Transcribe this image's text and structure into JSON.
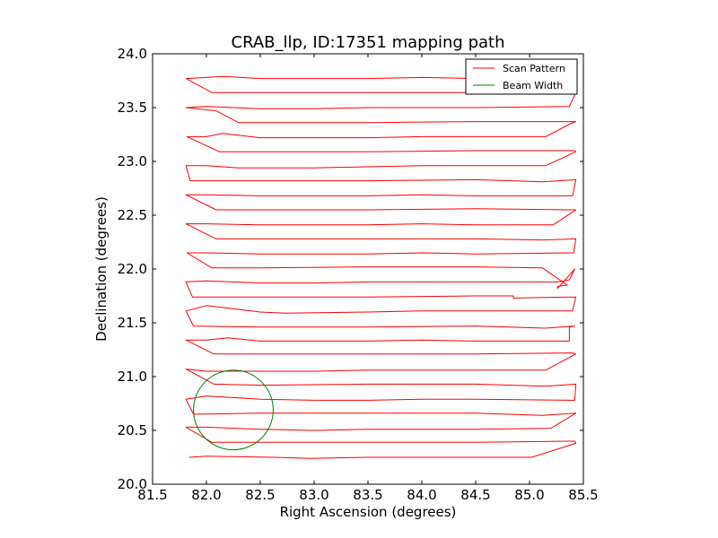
{
  "chart_data": {
    "type": "line",
    "title": "CRAB_llp, ID:17351 mapping path",
    "xlabel": "Right Ascension (degrees)",
    "ylabel": "Declination (degrees)",
    "xlim": [
      81.5,
      85.5
    ],
    "ylim": [
      20.0,
      24.0
    ],
    "xticks": [
      "81.5",
      "82.0",
      "82.5",
      "83.0",
      "83.5",
      "84.0",
      "84.5",
      "85.0",
      "85.5"
    ],
    "yticks": [
      "20.0",
      "20.5",
      "21.0",
      "21.5",
      "22.0",
      "22.5",
      "23.0",
      "23.5",
      "24.0"
    ],
    "grid": false,
    "legend_position": "top-right",
    "series": [
      {
        "name": "Scan Pattern",
        "color": "#ff0000",
        "points": [
          [
            81.84,
            20.25
          ],
          [
            82.0,
            20.26
          ],
          [
            82.63,
            20.25
          ],
          [
            82.97,
            20.24
          ],
          [
            83.5,
            20.25
          ],
          [
            84.0,
            20.25
          ],
          [
            84.5,
            20.25
          ],
          [
            85.02,
            20.25
          ],
          [
            85.43,
            20.38
          ],
          [
            85.42,
            20.4
          ],
          [
            84.5,
            20.39
          ],
          [
            83.5,
            20.39
          ],
          [
            82.5,
            20.39
          ],
          [
            82.05,
            20.39
          ],
          [
            81.81,
            20.53
          ],
          [
            82.0,
            20.53
          ],
          [
            82.5,
            20.51
          ],
          [
            83.0,
            20.5
          ],
          [
            83.5,
            20.51
          ],
          [
            84.0,
            20.51
          ],
          [
            84.5,
            20.51
          ],
          [
            85.2,
            20.52
          ],
          [
            85.43,
            20.66
          ],
          [
            85.12,
            20.64
          ],
          [
            84.5,
            20.66
          ],
          [
            83.5,
            20.66
          ],
          [
            82.5,
            20.66
          ],
          [
            81.88,
            20.65
          ],
          [
            81.81,
            20.79
          ],
          [
            82.0,
            20.82
          ],
          [
            82.5,
            20.79
          ],
          [
            83.0,
            20.78
          ],
          [
            83.5,
            20.78
          ],
          [
            84.0,
            20.79
          ],
          [
            84.5,
            20.79
          ],
          [
            85.42,
            20.78
          ],
          [
            85.43,
            20.93
          ],
          [
            85.15,
            20.91
          ],
          [
            84.5,
            20.93
          ],
          [
            83.5,
            20.93
          ],
          [
            82.5,
            20.92
          ],
          [
            82.07,
            20.93
          ],
          [
            81.81,
            21.07
          ],
          [
            82.0,
            21.05
          ],
          [
            82.5,
            21.05
          ],
          [
            83.0,
            21.05
          ],
          [
            83.5,
            21.06
          ],
          [
            84.0,
            21.06
          ],
          [
            84.5,
            21.06
          ],
          [
            85.15,
            21.06
          ],
          [
            85.43,
            21.21
          ],
          [
            85.4,
            21.22
          ],
          [
            84.5,
            21.21
          ],
          [
            83.5,
            21.21
          ],
          [
            82.5,
            21.21
          ],
          [
            82.07,
            21.21
          ],
          [
            81.81,
            21.34
          ],
          [
            82.0,
            21.34
          ],
          [
            82.2,
            21.36
          ],
          [
            82.5,
            21.33
          ],
          [
            83.0,
            21.33
          ],
          [
            83.5,
            21.33
          ],
          [
            84.0,
            21.34
          ],
          [
            84.5,
            21.33
          ],
          [
            85.37,
            21.33
          ],
          [
            85.37,
            21.46
          ],
          [
            85.42,
            21.47
          ],
          [
            85.15,
            21.45
          ],
          [
            84.5,
            21.47
          ],
          [
            83.5,
            21.46
          ],
          [
            82.5,
            21.46
          ],
          [
            81.88,
            21.47
          ],
          [
            81.81,
            21.61
          ],
          [
            82.0,
            21.66
          ],
          [
            82.5,
            21.6
          ],
          [
            82.73,
            21.59
          ],
          [
            83.5,
            21.6
          ],
          [
            84.0,
            21.61
          ],
          [
            84.5,
            21.61
          ],
          [
            85.4,
            21.61
          ],
          [
            85.43,
            21.74
          ],
          [
            84.85,
            21.73
          ],
          [
            84.85,
            21.75
          ],
          [
            84.5,
            21.75
          ],
          [
            83.5,
            21.74
          ],
          [
            82.5,
            21.74
          ],
          [
            81.87,
            21.74
          ],
          [
            81.81,
            21.88
          ],
          [
            82.0,
            21.89
          ],
          [
            82.5,
            21.87
          ],
          [
            83.0,
            21.87
          ],
          [
            83.5,
            21.88
          ],
          [
            84.0,
            21.88
          ],
          [
            84.5,
            21.88
          ],
          [
            85.26,
            21.88
          ],
          [
            85.37,
            21.9
          ],
          [
            85.42,
            22.0
          ],
          [
            85.26,
            21.82
          ],
          [
            85.26,
            21.84
          ],
          [
            85.35,
            21.85
          ],
          [
            85.12,
            22.01
          ],
          [
            84.5,
            22.02
          ],
          [
            83.5,
            22.02
          ],
          [
            82.5,
            22.01
          ],
          [
            82.05,
            22.01
          ],
          [
            81.82,
            22.15
          ],
          [
            82.0,
            22.15
          ],
          [
            82.5,
            22.14
          ],
          [
            83.0,
            22.14
          ],
          [
            83.5,
            22.14
          ],
          [
            84.0,
            22.15
          ],
          [
            84.5,
            22.14
          ],
          [
            85.41,
            22.15
          ],
          [
            85.43,
            22.28
          ],
          [
            85.12,
            22.27
          ],
          [
            84.5,
            22.28
          ],
          [
            83.5,
            22.28
          ],
          [
            82.5,
            22.28
          ],
          [
            82.09,
            22.28
          ],
          [
            81.81,
            22.42
          ],
          [
            82.0,
            22.42
          ],
          [
            82.5,
            22.41
          ],
          [
            83.0,
            22.41
          ],
          [
            83.5,
            22.41
          ],
          [
            84.0,
            22.42
          ],
          [
            84.5,
            22.41
          ],
          [
            85.22,
            22.41
          ],
          [
            85.43,
            22.55
          ],
          [
            85.4,
            22.55
          ],
          [
            84.5,
            22.56
          ],
          [
            83.5,
            22.55
          ],
          [
            82.5,
            22.55
          ],
          [
            82.09,
            22.55
          ],
          [
            81.81,
            22.69
          ],
          [
            82.0,
            22.69
          ],
          [
            82.5,
            22.68
          ],
          [
            83.0,
            22.68
          ],
          [
            83.5,
            22.68
          ],
          [
            84.0,
            22.69
          ],
          [
            84.5,
            22.68
          ],
          [
            85.4,
            22.68
          ],
          [
            85.43,
            22.83
          ],
          [
            85.12,
            22.81
          ],
          [
            84.5,
            22.83
          ],
          [
            83.5,
            22.82
          ],
          [
            82.5,
            22.82
          ],
          [
            81.85,
            22.82
          ],
          [
            81.81,
            22.96
          ],
          [
            82.0,
            22.96
          ],
          [
            82.3,
            22.94
          ],
          [
            83.0,
            22.94
          ],
          [
            83.5,
            22.95
          ],
          [
            84.0,
            22.96
          ],
          [
            84.5,
            22.96
          ],
          [
            85.15,
            22.96
          ],
          [
            85.43,
            23.09
          ],
          [
            85.42,
            23.1
          ],
          [
            84.5,
            23.1
          ],
          [
            83.5,
            23.09
          ],
          [
            82.5,
            23.09
          ],
          [
            82.12,
            23.09
          ],
          [
            81.82,
            23.23
          ],
          [
            82.0,
            23.23
          ],
          [
            82.15,
            23.26
          ],
          [
            82.5,
            23.22
          ],
          [
            83.0,
            23.22
          ],
          [
            83.5,
            23.22
          ],
          [
            84.0,
            23.23
          ],
          [
            84.5,
            23.23
          ],
          [
            85.15,
            23.23
          ],
          [
            85.38,
            23.35
          ],
          [
            85.43,
            23.37
          ],
          [
            84.5,
            23.37
          ],
          [
            83.5,
            23.36
          ],
          [
            82.5,
            23.36
          ],
          [
            82.3,
            23.36
          ],
          [
            82.09,
            23.47
          ],
          [
            81.81,
            23.5
          ],
          [
            82.0,
            23.51
          ],
          [
            82.5,
            23.49
          ],
          [
            83.0,
            23.49
          ],
          [
            83.5,
            23.5
          ],
          [
            84.0,
            23.5
          ],
          [
            84.5,
            23.5
          ],
          [
            85.37,
            23.51
          ],
          [
            85.43,
            23.64
          ],
          [
            84.5,
            23.64
          ],
          [
            83.5,
            23.64
          ],
          [
            82.5,
            23.64
          ],
          [
            82.05,
            23.64
          ],
          [
            81.81,
            23.77
          ],
          [
            82.0,
            23.78
          ],
          [
            82.15,
            23.79
          ],
          [
            82.5,
            23.77
          ],
          [
            83.0,
            23.77
          ],
          [
            83.5,
            23.77
          ],
          [
            84.0,
            23.78
          ],
          [
            84.5,
            23.77
          ],
          [
            85.18,
            23.77
          ]
        ]
      },
      {
        "name": "Beam Width",
        "color": "#008000",
        "center": [
          82.25,
          20.69
        ],
        "radius_deg": 0.37
      }
    ]
  }
}
